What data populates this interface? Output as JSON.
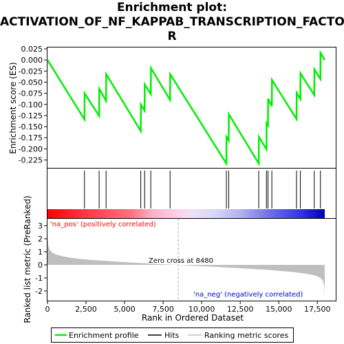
{
  "chart_data": {
    "type": "line",
    "title_lines": [
      "Enrichment plot:",
      "ACTIVATION_OF_NF_KAPPAB_TRANSCRIPTION_FACTO",
      "R"
    ],
    "xlabel": "Rank in Ordered Dataset",
    "ylabel_top": "Enrichment score (ES)",
    "ylabel_bottom": "Ranked list metric (PreRanked)",
    "xlim": [
      0,
      18000
    ],
    "xticks": [
      0,
      2500,
      5000,
      7500,
      10000,
      12500,
      15000,
      17500
    ],
    "xtick_labels": [
      "0",
      "2,500",
      "5,000",
      "7,500",
      "10,000",
      "12,500",
      "15,000",
      "17,500"
    ],
    "es_ylim": [
      -0.25,
      0.025
    ],
    "es_yticks": [
      0.025,
      0.0,
      -0.025,
      -0.05,
      -0.075,
      -0.1,
      -0.125,
      -0.15,
      -0.175,
      -0.2,
      -0.225
    ],
    "es_ytick_labels": [
      "0.025",
      "0.000",
      "-0.025",
      "-0.050",
      "-0.075",
      "-0.100",
      "-0.125",
      "-0.150",
      "-0.175",
      "-0.200",
      "-0.225"
    ],
    "metric_ylim": [
      -2.5,
      3.5
    ],
    "metric_yticks": [
      3,
      2,
      1,
      0,
      -1,
      -2
    ],
    "metric_ytick_labels": [
      "3",
      "2",
      "1",
      "0",
      "-1",
      "-2"
    ],
    "hits": [
      2400,
      3350,
      3800,
      6050,
      6300,
      6700,
      7950,
      11600,
      11750,
      13700,
      14200,
      14300,
      14550,
      16150,
      16400,
      17300,
      17700
    ],
    "es_profile": {
      "x": [
        0,
        2400,
        2410,
        3350,
        3360,
        3800,
        3810,
        6050,
        6060,
        6300,
        6310,
        6700,
        6710,
        7950,
        7960,
        11600,
        11610,
        11750,
        11760,
        13700,
        13710,
        14200,
        14210,
        14300,
        14310,
        14550,
        14560,
        16150,
        16160,
        16400,
        16410,
        17300,
        17310,
        17700,
        17710,
        17980
      ],
      "y": [
        0.0,
        -0.134,
        -0.075,
        -0.126,
        -0.065,
        -0.092,
        -0.032,
        -0.16,
        -0.1,
        -0.114,
        -0.055,
        -0.077,
        -0.018,
        -0.09,
        -0.032,
        -0.233,
        -0.173,
        -0.181,
        -0.122,
        -0.233,
        -0.173,
        -0.201,
        -0.142,
        -0.147,
        -0.087,
        -0.104,
        -0.045,
        -0.133,
        -0.074,
        -0.088,
        -0.03,
        -0.079,
        -0.021,
        -0.043,
        0.016,
        0.0
      ]
    },
    "metric_profile": {
      "x": [
        0,
        50,
        150,
        300,
        600,
        1000,
        1500,
        2000,
        3000,
        4000,
        5000,
        6000,
        7000,
        8000,
        8480,
        9000,
        10000,
        11000,
        12000,
        13000,
        14000,
        15000,
        15500,
        16000,
        16500,
        17000,
        17300,
        17500,
        17700,
        17850,
        17950,
        17980
      ],
      "y": [
        2.1,
        1.5,
        1.15,
        0.95,
        0.78,
        0.66,
        0.55,
        0.47,
        0.37,
        0.29,
        0.21,
        0.14,
        0.08,
        0.02,
        0.0,
        -0.04,
        -0.1,
        -0.16,
        -0.22,
        -0.29,
        -0.36,
        -0.45,
        -0.5,
        -0.56,
        -0.63,
        -0.72,
        -0.8,
        -0.88,
        -1.0,
        -1.2,
        -1.6,
        -2.4
      ]
    },
    "zero_cross": 8480,
    "zero_cross_label": "Zero cross at 8480",
    "pos_label": "'na_pos' (positively correlated)",
    "neg_label": "'na_neg' (negatively correlated)",
    "legend": [
      {
        "label": "Enrichment profile",
        "color": "#00ee00"
      },
      {
        "label": "Hits",
        "color": "#000000"
      },
      {
        "label": "Ranking metric scores",
        "color": "#c0c0c0"
      }
    ],
    "legend_position": "bottom",
    "grid": false
  },
  "colors": {
    "es_line": "#00ee00",
    "hit": "#000000",
    "metric_fill": "#bfbfbf",
    "pos_label": "#ff0000",
    "neg_label": "#0000cc",
    "zero_line": "#a0a0c0"
  }
}
